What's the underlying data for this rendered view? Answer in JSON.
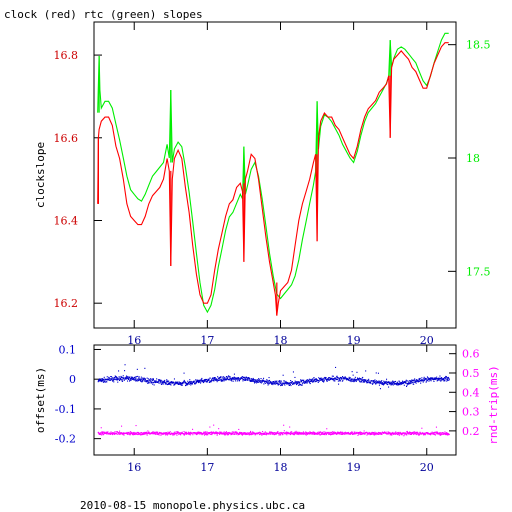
{
  "chart_data": [
    {
      "type": "line",
      "title": "clock (red) rtc (green) slopes",
      "ylabel": "clockslope",
      "ylim": [
        16.14,
        16.88
      ],
      "y2lim": [
        17.25,
        18.6
      ],
      "xlim": [
        15.45,
        20.4
      ],
      "x_ticks": [
        "16",
        "17",
        "18",
        "19",
        "20"
      ],
      "y_ticks": [
        "16.2",
        "16.4",
        "16.6",
        "16.8"
      ],
      "y2_ticks": [
        "17.5",
        "18",
        "18.5"
      ],
      "series": [
        {
          "color": "#ff0000",
          "axis": "left",
          "x": [
            15.5,
            15.51,
            15.52,
            15.55,
            15.6,
            15.65,
            15.7,
            15.75,
            15.8,
            15.85,
            15.9,
            15.95,
            16.0,
            16.05,
            16.1,
            16.15,
            16.2,
            16.25,
            16.3,
            16.35,
            16.4,
            16.45,
            16.48,
            16.5,
            16.52,
            16.55,
            16.6,
            16.65,
            16.7,
            16.75,
            16.8,
            16.85,
            16.9,
            16.95,
            17.0,
            17.05,
            17.1,
            17.15,
            17.2,
            17.25,
            17.3,
            17.35,
            17.4,
            17.45,
            17.48,
            17.5,
            17.52,
            17.55,
            17.6,
            17.65,
            17.7,
            17.75,
            17.8,
            17.85,
            17.9,
            17.93,
            17.95,
            17.97,
            18.0,
            18.05,
            18.1,
            18.15,
            18.2,
            18.25,
            18.3,
            18.35,
            18.4,
            18.45,
            18.48,
            18.5,
            18.52,
            18.55,
            18.6,
            18.65,
            18.7,
            18.75,
            18.8,
            18.85,
            18.9,
            18.95,
            19.0,
            19.05,
            19.1,
            19.15,
            19.2,
            19.25,
            19.3,
            19.35,
            19.4,
            19.45,
            19.48,
            19.5,
            19.52,
            19.55,
            19.6,
            19.65,
            19.7,
            19.75,
            19.8,
            19.85,
            19.9,
            19.95,
            20.0,
            20.05,
            20.1,
            20.15,
            20.2,
            20.25,
            20.3
          ],
          "y": [
            16.44,
            16.6,
            16.62,
            16.64,
            16.65,
            16.65,
            16.63,
            16.58,
            16.55,
            16.5,
            16.44,
            16.41,
            16.4,
            16.39,
            16.39,
            16.41,
            16.44,
            16.46,
            16.47,
            16.48,
            16.5,
            16.55,
            16.52,
            16.29,
            16.5,
            16.55,
            16.57,
            16.55,
            16.48,
            16.42,
            16.34,
            16.27,
            16.22,
            16.2,
            16.2,
            16.22,
            16.28,
            16.33,
            16.37,
            16.41,
            16.44,
            16.45,
            16.48,
            16.49,
            16.47,
            16.3,
            16.5,
            16.52,
            16.56,
            16.55,
            16.5,
            16.43,
            16.36,
            16.3,
            16.25,
            16.22,
            16.17,
            16.2,
            16.23,
            16.24,
            16.25,
            16.28,
            16.34,
            16.4,
            16.44,
            16.47,
            16.5,
            16.54,
            16.56,
            16.35,
            16.6,
            16.64,
            16.66,
            16.65,
            16.65,
            16.63,
            16.62,
            16.6,
            16.58,
            16.56,
            16.55,
            16.58,
            16.62,
            16.65,
            16.67,
            16.68,
            16.69,
            16.71,
            16.72,
            16.73,
            16.75,
            16.6,
            16.77,
            16.79,
            16.8,
            16.81,
            16.8,
            16.79,
            16.77,
            16.76,
            16.74,
            16.72,
            16.72,
            16.75,
            16.78,
            16.8,
            16.82,
            16.83,
            16.83
          ]
        },
        {
          "color": "#00ee00",
          "axis": "right",
          "x": [
            15.5,
            15.52,
            15.53,
            15.55,
            15.6,
            15.65,
            15.7,
            15.75,
            15.8,
            15.85,
            15.9,
            15.95,
            16.0,
            16.05,
            16.1,
            16.15,
            16.2,
            16.25,
            16.3,
            16.35,
            16.4,
            16.45,
            16.48,
            16.5,
            16.52,
            16.55,
            16.6,
            16.65,
            16.7,
            16.75,
            16.8,
            16.85,
            16.9,
            16.95,
            17.0,
            17.05,
            17.1,
            17.15,
            17.2,
            17.25,
            17.3,
            17.35,
            17.4,
            17.45,
            17.48,
            17.5,
            17.52,
            17.55,
            17.6,
            17.65,
            17.7,
            17.75,
            17.8,
            17.85,
            17.9,
            17.95,
            18.0,
            18.05,
            18.1,
            18.15,
            18.2,
            18.25,
            18.3,
            18.35,
            18.4,
            18.45,
            18.48,
            18.5,
            18.52,
            18.55,
            18.6,
            18.65,
            18.7,
            18.75,
            18.8,
            18.85,
            18.9,
            18.95,
            19.0,
            19.05,
            19.1,
            19.15,
            19.2,
            19.25,
            19.3,
            19.35,
            19.4,
            19.45,
            19.48,
            19.5,
            19.52,
            19.55,
            19.6,
            19.65,
            19.7,
            19.75,
            19.8,
            19.85,
            19.9,
            19.95,
            20.0,
            20.05,
            20.1,
            20.15,
            20.2,
            20.25,
            20.3
          ],
          "y": [
            18.2,
            18.45,
            18.3,
            18.22,
            18.25,
            18.25,
            18.22,
            18.15,
            18.08,
            18.0,
            17.92,
            17.86,
            17.84,
            17.82,
            17.81,
            17.84,
            17.88,
            17.92,
            17.94,
            17.96,
            17.98,
            18.06,
            18.0,
            18.3,
            17.98,
            18.04,
            18.07,
            18.05,
            17.96,
            17.85,
            17.72,
            17.58,
            17.45,
            17.35,
            17.32,
            17.35,
            17.42,
            17.52,
            17.6,
            17.68,
            17.74,
            17.76,
            17.8,
            17.84,
            17.82,
            18.05,
            17.84,
            17.88,
            17.95,
            17.98,
            17.92,
            17.82,
            17.7,
            17.58,
            17.48,
            17.4,
            17.38,
            17.4,
            17.42,
            17.44,
            17.48,
            17.55,
            17.64,
            17.72,
            17.8,
            17.88,
            17.94,
            18.25,
            18.04,
            18.14,
            18.19,
            18.18,
            18.16,
            18.13,
            18.1,
            18.06,
            18.03,
            18.0,
            17.98,
            18.03,
            18.1,
            18.16,
            18.2,
            18.22,
            18.24,
            18.27,
            18.3,
            18.33,
            18.36,
            18.52,
            18.4,
            18.44,
            18.48,
            18.49,
            18.48,
            18.46,
            18.44,
            18.42,
            18.38,
            18.34,
            18.32,
            18.36,
            18.42,
            18.47,
            18.52,
            18.55,
            18.55
          ]
        }
      ],
      "spikes": {
        "red": [
          {
            "x": 15.51,
            "y0": 16.44,
            "y1": 16.6
          },
          {
            "x": 16.5,
            "y0": 16.29,
            "y1": 16.52
          },
          {
            "x": 17.5,
            "y0": 16.3,
            "y1": 16.49
          },
          {
            "x": 17.95,
            "y0": 16.17,
            "y1": 16.25
          },
          {
            "x": 18.5,
            "y0": 16.35,
            "y1": 16.56
          },
          {
            "x": 19.5,
            "y0": 16.6,
            "y1": 16.75
          }
        ],
        "green": [
          {
            "x": 15.52,
            "y0": 18.2,
            "y1": 18.45
          },
          {
            "x": 16.5,
            "y0": 17.98,
            "y1": 18.3
          },
          {
            "x": 17.5,
            "y0": 17.84,
            "y1": 18.05
          },
          {
            "x": 18.5,
            "y0": 17.94,
            "y1": 18.25
          },
          {
            "x": 19.5,
            "y0": 18.36,
            "y1": 18.52
          }
        ]
      }
    },
    {
      "type": "scatter",
      "ylabel": "offset(ms)",
      "y2label": "rnd-trip(ms)",
      "ylim": [
        -0.255,
        0.115
      ],
      "y2lim": [
        0.075,
        0.645
      ],
      "xlim": [
        15.45,
        20.4
      ],
      "x_ticks": [
        "16",
        "17",
        "18",
        "19",
        "20"
      ],
      "y_ticks": [
        "0.1",
        "0",
        "-0.1",
        "-0.2"
      ],
      "y2_ticks": [
        "0.6",
        "0.5",
        "0.4",
        "0.3",
        "0.2"
      ],
      "series": [
        {
          "color": "#0000cc",
          "axis": "left",
          "x_start": 15.5,
          "x_end": 20.3,
          "baseline": 0.0,
          "spread": 0.012
        },
        {
          "color": "#ff00ff",
          "axis": "right",
          "x_start": 15.5,
          "x_end": 20.3,
          "baseline": 0.19,
          "spread": 0.012
        }
      ]
    }
  ],
  "footer": "2010-08-15  monopole.physics.ubc.ca",
  "colors": {
    "frame": "#000000",
    "x_tick_label": "#000099",
    "top_left_tick_label": "#cc0000",
    "top_right_tick_label": "#00ee00",
    "bottom_left_tick_label": "#0000cc",
    "bottom_right_tick_label": "#ff00ff"
  }
}
